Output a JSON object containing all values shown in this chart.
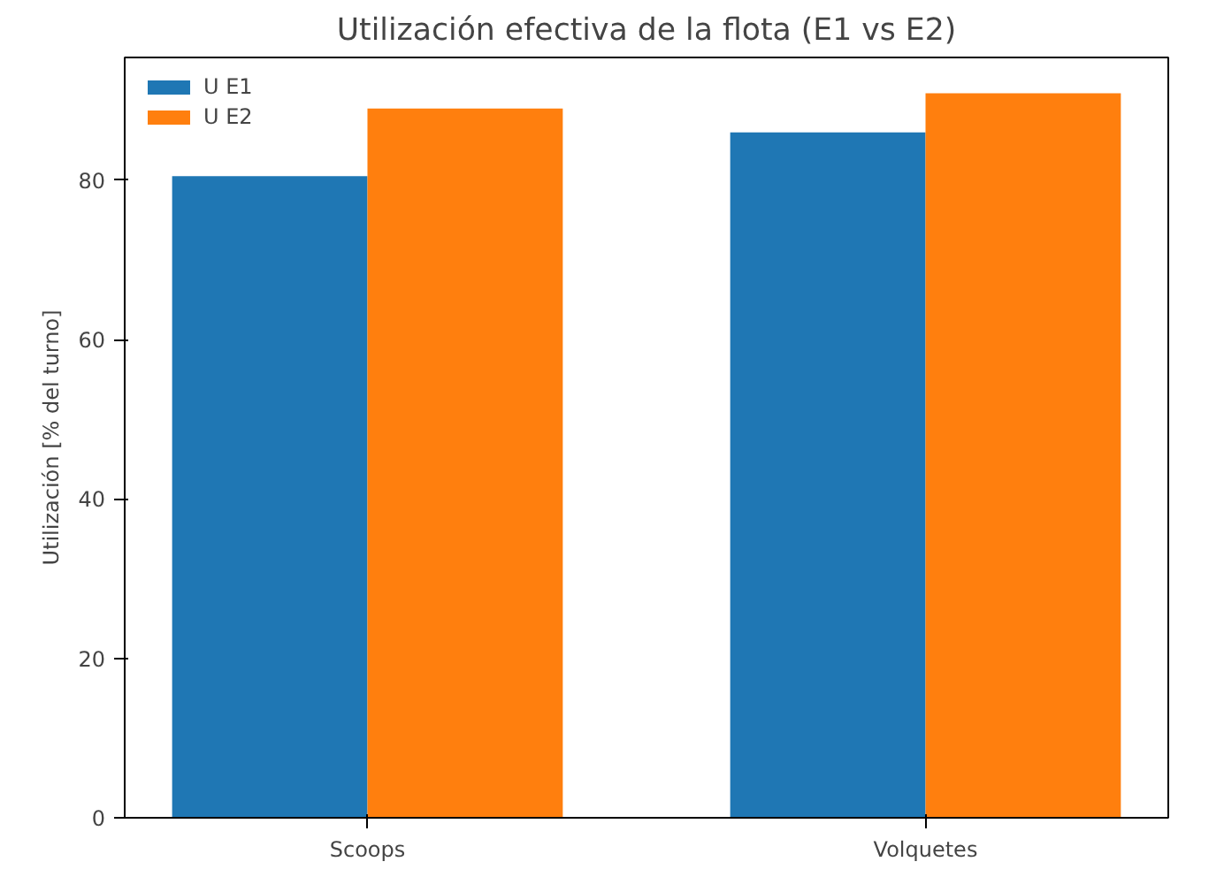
{
  "chart_data": {
    "type": "bar",
    "title": "Utilización efectiva de la flota (E1 vs E2)",
    "ylabel": "Utilización [% del turno]",
    "categories": [
      "Scoops",
      "Volquetes"
    ],
    "series": [
      {
        "name": "U E1",
        "color": "#1f77b4",
        "values": [
          80.5,
          86.0
        ]
      },
      {
        "name": "U E2",
        "color": "#ff7f0e",
        "values": [
          89.0,
          90.9
        ]
      }
    ],
    "ylim": [
      0,
      95.4
    ],
    "yticks": [
      0,
      20,
      40,
      60,
      80
    ],
    "legend": "top left",
    "grid": false
  }
}
